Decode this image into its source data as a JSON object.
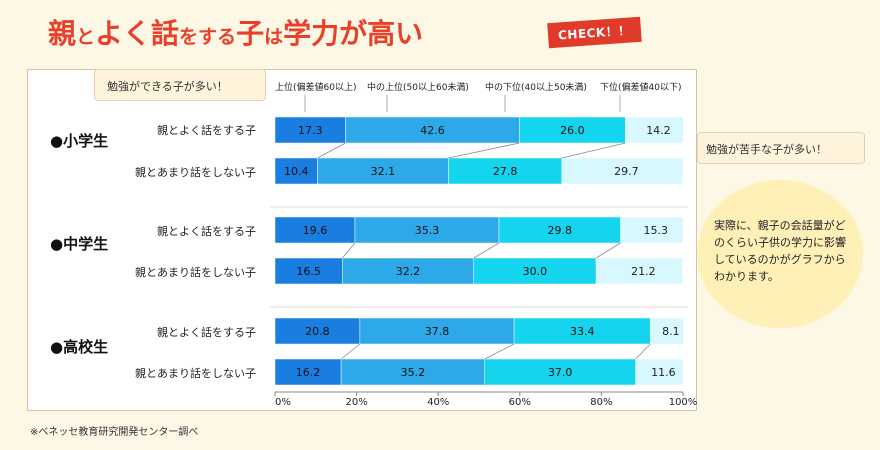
{
  "title": {
    "p1": "親",
    "p2": "と",
    "p3": "よく話",
    "p4": "をする",
    "p5": "子",
    "p6": "は",
    "p7": "学力が高い"
  },
  "check_badge": "CHECK！！",
  "callout_top": "勉強ができる子が多い！",
  "callout_right": "勉強が苦手な子が多い！",
  "explanation": "実際に、親子の会話量がどのくらい子供の学力に影響しているのかがグラフからわかります。",
  "source": "※ベネッセ教育研究開発センター調べ",
  "colors": {
    "seg1": "#1a7de0",
    "seg2": "#2da8e8",
    "seg3": "#14d4ee",
    "seg4": "#d8f8ff",
    "title": "#e8402a"
  },
  "chart_data": {
    "type": "bar",
    "orientation": "horizontal-stacked-100",
    "series": [
      {
        "name": "上位(偏差値60以上)"
      },
      {
        "name": "中の上位(50以上60未満)"
      },
      {
        "name": "中の下位(40以上50未満)"
      },
      {
        "name": "下位(偏差値40以下)"
      }
    ],
    "groups": [
      {
        "name": "●小学生",
        "rows": [
          {
            "label": "親とよく話をする子",
            "values": [
              17.3,
              42.6,
              26.0,
              14.2
            ],
            "value_labels": [
              "17.3",
              "42.6",
              "26.0",
              "14.2"
            ]
          },
          {
            "label": "親とあまり話をしない子",
            "values": [
              10.4,
              32.1,
              27.8,
              29.7
            ],
            "value_labels": [
              "10.4",
              "32.1",
              "27.8",
              "29.7"
            ]
          }
        ]
      },
      {
        "name": "●中学生",
        "rows": [
          {
            "label": "親とよく話をする子",
            "values": [
              19.6,
              35.3,
              29.8,
              15.3
            ],
            "value_labels": [
              "19.6",
              "35.3",
              "29.8",
              "15.3"
            ]
          },
          {
            "label": "親とあまり話をしない子",
            "values": [
              16.5,
              32.2,
              30.0,
              21.2
            ],
            "value_labels": [
              "16.5",
              "32.2",
              "30.0",
              "21.2"
            ]
          }
        ]
      },
      {
        "name": "●高校生",
        "rows": [
          {
            "label": "親とよく話をする子",
            "values": [
              20.8,
              37.8,
              33.4,
              8.1
            ],
            "value_labels": [
              "20.8",
              "37.8",
              "33.4",
              "8.1"
            ]
          },
          {
            "label": "親とあまり話をしない子",
            "values": [
              16.2,
              35.2,
              37.0,
              11.6
            ],
            "value_labels": [
              "16.2",
              "35.2",
              "37.0",
              "11.6"
            ]
          }
        ]
      }
    ],
    "x_ticks": [
      "0%",
      "20%",
      "40%",
      "60%",
      "80%",
      "100%"
    ],
    "xlim": [
      0,
      100
    ],
    "legend_position": "top"
  }
}
